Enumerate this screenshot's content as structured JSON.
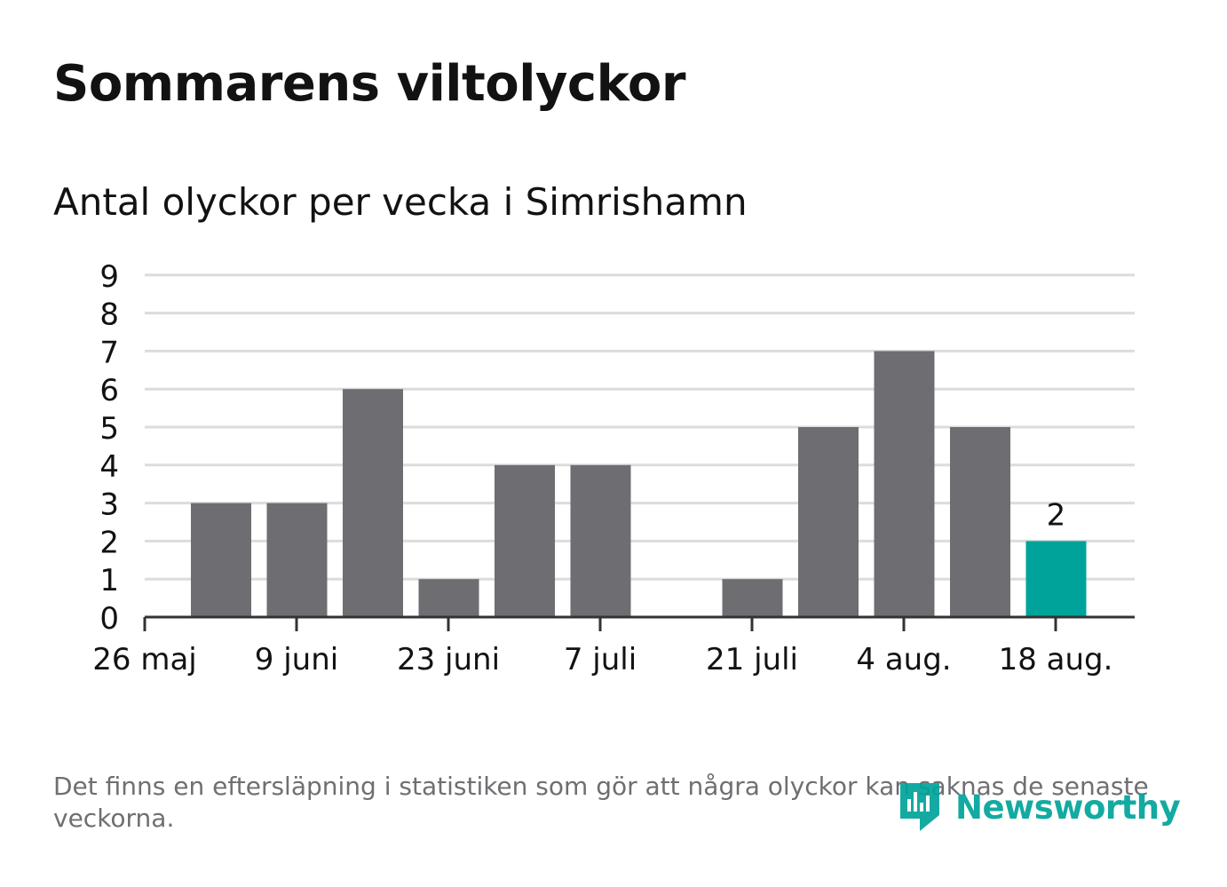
{
  "title": "Sommarens viltolyckor",
  "subtitle": "Antal olyckor per vecka i Simrishamn",
  "note": "Det finns en eftersläpning i statistiken som gör att några olyckor kan saknas de senaste veckorna.",
  "logo": {
    "text": "Newsworthy",
    "icon": "newsworthy-logo-icon"
  },
  "colors": {
    "bar": "#6e6d72",
    "highlight": "#00a39a",
    "grid": "#dcdcdc",
    "axis": "#333333",
    "text": "#121212"
  },
  "chart_data": {
    "type": "bar",
    "x_ticks": [
      "26 maj",
      "9 juni",
      "23 juni",
      "7 juli",
      "21 juli",
      "4 aug.",
      "18 aug."
    ],
    "y_ticks": [
      "0",
      "1",
      "2",
      "3",
      "4",
      "5",
      "6",
      "7",
      "8",
      "9"
    ],
    "ylim": [
      0,
      9
    ],
    "grid": true,
    "values": [
      3,
      3,
      6,
      1,
      4,
      4,
      0,
      1,
      5,
      7,
      5,
      2
    ],
    "highlight_index": 11,
    "data_labels": [
      {
        "index": 11,
        "text": "2"
      }
    ]
  }
}
